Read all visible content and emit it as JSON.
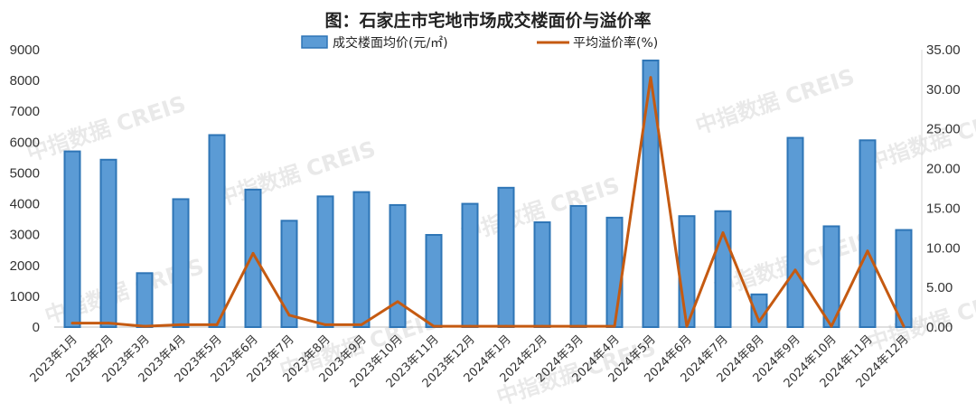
{
  "chart_data": {
    "type": "bar",
    "title": "图：石家庄市宅地市场成交楼面价与溢价率",
    "watermark": "中指数据 CREIS",
    "categories": [
      "2023年1月",
      "2023年2月",
      "2023年3月",
      "2023年4月",
      "2023年5月",
      "2023年6月",
      "2023年7月",
      "2023年8月",
      "2023年9月",
      "2023年10月",
      "2023年11月",
      "2023年12月",
      "2024年1月",
      "2024年2月",
      "2024年3月",
      "2024年4月",
      "2024年5月",
      "2024年6月",
      "2024年7月",
      "2024年8月",
      "2024年9月",
      "2024年10月",
      "2024年11月",
      "2024年12月"
    ],
    "series": [
      {
        "name": "成交楼面均价(元/㎡)",
        "type": "bar",
        "axis": "left",
        "color": "#5b9bd5",
        "values": [
          5700,
          5430,
          1750,
          4150,
          6230,
          4460,
          3450,
          4240,
          4380,
          3960,
          2990,
          4000,
          4520,
          3400,
          3930,
          3550,
          8650,
          3600,
          3760,
          1060,
          6140,
          3270,
          6060,
          3150
        ]
      },
      {
        "name": "平均溢价率(%)",
        "type": "line",
        "axis": "right",
        "color": "#c55a11",
        "values": [
          0.5,
          0.5,
          0.1,
          0.3,
          0.3,
          9.3,
          1.5,
          0.3,
          0.3,
          3.2,
          0.1,
          0.1,
          0.1,
          0.1,
          0.1,
          0.1,
          31.5,
          0.1,
          11.9,
          0.7,
          7.2,
          0.1,
          9.6,
          0.1
        ]
      }
    ],
    "y_left": {
      "min": 0,
      "max": 9000,
      "step": 1000,
      "ticks": [
        "0",
        "1000",
        "2000",
        "3000",
        "4000",
        "5000",
        "6000",
        "7000",
        "8000",
        "9000"
      ]
    },
    "y_right": {
      "min": 0,
      "max": 35,
      "step": 5,
      "ticks": [
        "0.00",
        "5.00",
        "10.00",
        "15.00",
        "20.00",
        "25.00",
        "30.00",
        "35.00"
      ]
    },
    "legend_position": "top-center",
    "grid": false
  }
}
